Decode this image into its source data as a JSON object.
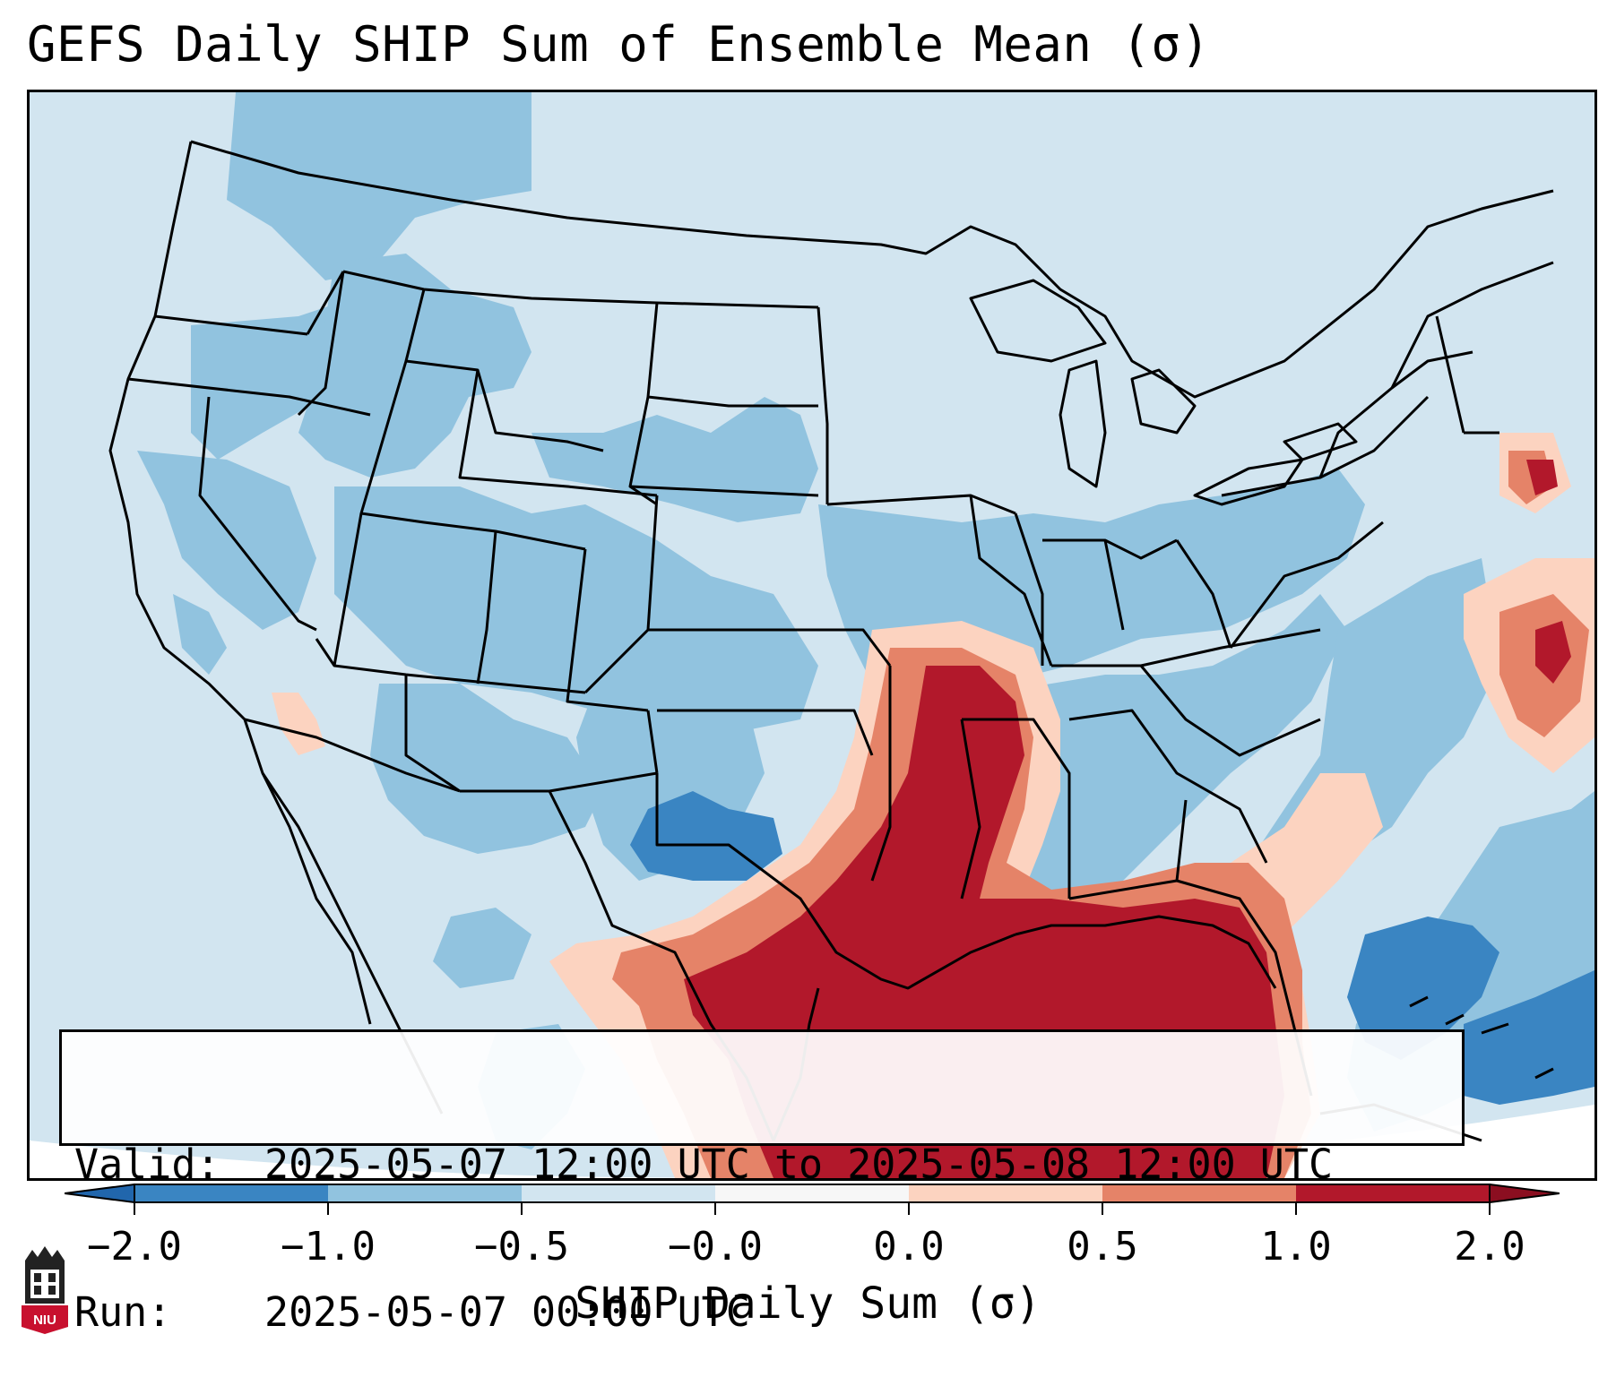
{
  "title": "GEFS Daily SHIP Sum of Ensemble Mean (σ)",
  "info": {
    "valid_label": "Valid:",
    "valid_value": "2025-05-07 12:00 UTC to 2025-05-08 12:00 UTC",
    "run_label": "Run:",
    "run_value": "2025-05-07 00:00 UTC"
  },
  "colorbar": {
    "label": "SHIP Daily Sum (σ)",
    "ticks": [
      "−2.0",
      "−1.0",
      "−0.5",
      "−0.0",
      "0.0",
      "0.5",
      "1.0",
      "2.0"
    ],
    "colors": [
      "#3a85c2",
      "#91c3df",
      "#d2e5f0",
      "#f7f7f7",
      "#fcd3c0",
      "#e58368",
      "#b2182b"
    ],
    "under_color": "#2166ac",
    "over_color": "#8b0e20"
  },
  "map": {
    "ocean_fill": "#d2e5f0",
    "border_color": "#000000"
  },
  "logo": {
    "text": "NIU"
  }
}
